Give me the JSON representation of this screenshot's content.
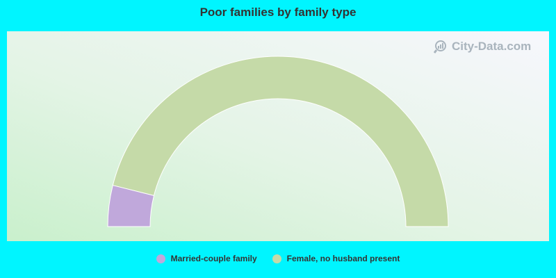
{
  "chart_data": {
    "type": "pie",
    "title": "Poor families by family type",
    "categories": [
      "Married-couple family",
      "Female, no husband present"
    ],
    "values": [
      7.8,
      92.2
    ],
    "colors": [
      "#c0a8db",
      "#c5daa8"
    ],
    "grid": false,
    "legend_position": "bottom-center"
  },
  "watermark": {
    "text": "City-Data.com",
    "icon": "magnifier-chart-icon"
  },
  "colors": {
    "background": "#00f5ff",
    "segment_stroke": "#ffffff"
  }
}
